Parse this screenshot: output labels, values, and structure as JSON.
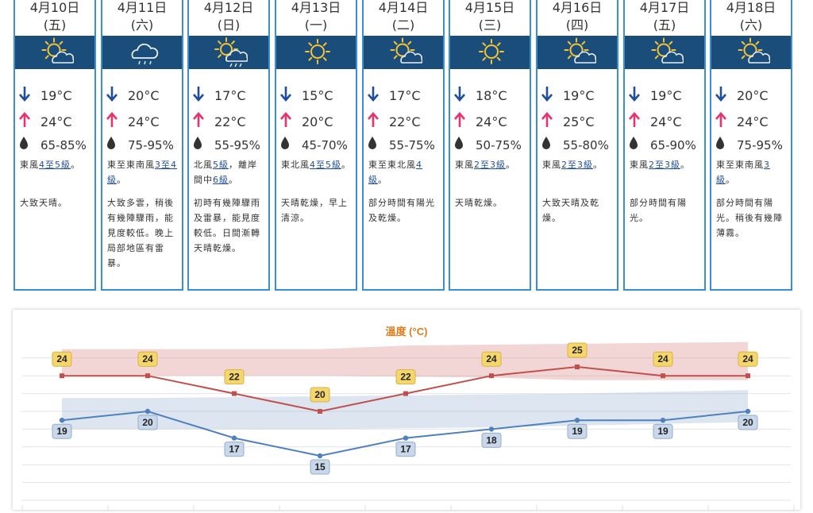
{
  "forecast": [
    {
      "date": "4月10日",
      "weekday": "(五)",
      "icon": "sunny-cloud-icon",
      "min": "19°C",
      "max": "24°C",
      "humidity": "65-85%",
      "wind_pre": "東風",
      "wind_link": "4至5級",
      "wind_post": "。",
      "desc": "大致天晴。"
    },
    {
      "date": "4月11日",
      "weekday": "(六)",
      "icon": "rain-cloud-icon",
      "min": "20°C",
      "max": "24°C",
      "humidity": "75-95%",
      "wind_pre": "東至東南風",
      "wind_link": "3至4級",
      "wind_post": "。",
      "desc": "大致多雲，稍後有幾陣驟雨，能見度較低。晚上局部地區有雷暴。"
    },
    {
      "date": "4月12日",
      "weekday": "(日)",
      "icon": "sun-rain-icon",
      "min": "17°C",
      "max": "22°C",
      "humidity": "55-95%",
      "wind_pre": "北風",
      "wind_link": "5級",
      "wind_post": "，離岸間中",
      "wind_link2": "6級",
      "wind_post2": "。",
      "desc": "初時有幾陣驟雨及雷暴，能見度較低。日間漸轉天晴乾燥。"
    },
    {
      "date": "4月13日",
      "weekday": "(一)",
      "icon": "sunny-icon",
      "min": "15°C",
      "max": "20°C",
      "humidity": "45-70%",
      "wind_pre": "東北風",
      "wind_link": "4至5級",
      "wind_post": "。",
      "desc": "天晴乾燥，早上清涼。"
    },
    {
      "date": "4月14日",
      "weekday": "(二)",
      "icon": "sunny-cloud-icon",
      "min": "17°C",
      "max": "22°C",
      "humidity": "55-75%",
      "wind_pre": "東至東北風",
      "wind_link": "4級",
      "wind_post": "。",
      "desc": "部分時間有陽光及乾燥。"
    },
    {
      "date": "4月15日",
      "weekday": "(三)",
      "icon": "sunny-icon",
      "min": "18°C",
      "max": "24°C",
      "humidity": "50-75%",
      "wind_pre": "東風",
      "wind_link": "2至3級",
      "wind_post": "。",
      "desc": "天晴乾燥。"
    },
    {
      "date": "4月16日",
      "weekday": "(四)",
      "icon": "sunny-cloud-icon",
      "min": "19°C",
      "max": "25°C",
      "humidity": "55-80%",
      "wind_pre": "東風",
      "wind_link": "2至3級",
      "wind_post": "。",
      "desc": "大致天晴及乾燥。"
    },
    {
      "date": "4月17日",
      "weekday": "(五)",
      "icon": "sunny-cloud-icon",
      "min": "19°C",
      "max": "24°C",
      "humidity": "65-90%",
      "wind_pre": "東風",
      "wind_link": "2至3級",
      "wind_post": "。",
      "desc": "部分時間有陽光。"
    },
    {
      "date": "4月18日",
      "weekday": "(六)",
      "icon": "sunny-cloud-icon",
      "min": "20°C",
      "max": "24°C",
      "humidity": "75-95%",
      "wind_pre": "東至東南風",
      "wind_link": "3級",
      "wind_post": "。",
      "desc": "部分時間有陽光。稍後有幾陣薄霧。"
    }
  ],
  "colors": {
    "card_border": "#3a8fd0",
    "icon_band": "#1b4d7a",
    "min_arrow": "#1f4e9b",
    "max_arrow": "#e8336d",
    "max_line": "#c0504d",
    "min_line": "#4f81bd",
    "label_fill": "#f5d66b",
    "min_label_fill": "#c9d7ea",
    "title_color": "#e07b1a"
  },
  "chart_data": {
    "type": "line",
    "title": "溫度 (°C)",
    "ylim": [
      10,
      29
    ],
    "series": [
      {
        "values": [
          24,
          24,
          22,
          20,
          22,
          24,
          25,
          24,
          24
        ],
        "band_low": [
          24,
          24,
          24,
          24,
          24,
          24,
          24,
          24,
          24
        ],
        "band_high": [
          27,
          27,
          27,
          27,
          27,
          27,
          27,
          27,
          27
        ]
      },
      {
        "values": [
          19,
          20,
          17,
          15,
          17,
          18,
          19,
          19,
          20
        ],
        "band_low": [
          18,
          18,
          18,
          18,
          18,
          18,
          18,
          18,
          18
        ],
        "band_high": [
          21,
          21,
          21,
          21,
          21,
          21,
          21,
          21,
          21
        ]
      }
    ],
    "band_high_series": {
      "high": [
        27,
        27,
        27,
        27,
        27.4,
        27.5,
        27.6,
        27.7,
        27.8
      ],
      "low": [
        24,
        24,
        24,
        24,
        23.9,
        23.8,
        23.5,
        23.5,
        23.5
      ]
    },
    "band_low_series": {
      "high": [
        21.5,
        21.5,
        21.6,
        21.7,
        21.8,
        21.9,
        22.0,
        22.2,
        22.4
      ],
      "low": [
        18.0,
        18.0,
        18.0,
        18.0,
        18.1,
        18.2,
        18.4,
        18.6,
        18.8
      ]
    },
    "grid": true
  }
}
